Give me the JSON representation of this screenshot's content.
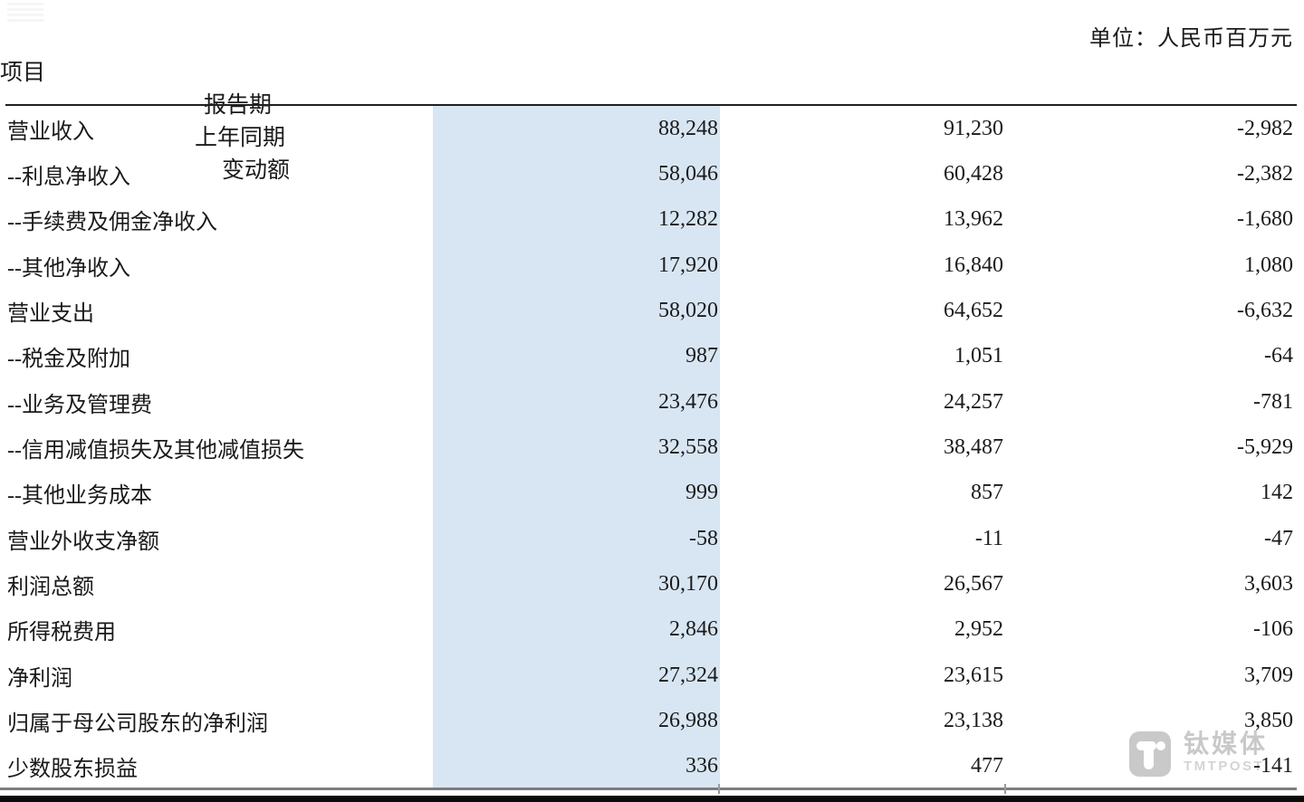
{
  "unit_label": "单位：人民币百万元",
  "table": {
    "columns": [
      "项目",
      "报告期",
      "上年同期",
      "变动额"
    ],
    "rows": [
      {
        "item": "营业收入",
        "current": "88,248",
        "prior": "91,230",
        "change": "-2,982"
      },
      {
        "item": "--利息净收入",
        "current": "58,046",
        "prior": "60,428",
        "change": "-2,382"
      },
      {
        "item": "--手续费及佣金净收入",
        "current": "12,282",
        "prior": "13,962",
        "change": "-1,680"
      },
      {
        "item": "--其他净收入",
        "current": "17,920",
        "prior": "16,840",
        "change": "1,080"
      },
      {
        "item": "营业支出",
        "current": "58,020",
        "prior": "64,652",
        "change": "-6,632"
      },
      {
        "item": "--税金及附加",
        "current": "987",
        "prior": "1,051",
        "change": "-64"
      },
      {
        "item": "--业务及管理费",
        "current": "23,476",
        "prior": "24,257",
        "change": "-781"
      },
      {
        "item": "--信用减值损失及其他减值损失",
        "current": "32,558",
        "prior": "38,487",
        "change": "-5,929"
      },
      {
        "item": "--其他业务成本",
        "current": "999",
        "prior": "857",
        "change": "142"
      },
      {
        "item": "营业外收支净额",
        "current": "-58",
        "prior": "-11",
        "change": "-47"
      },
      {
        "item": "利润总额",
        "current": "30,170",
        "prior": "26,567",
        "change": "3,603"
      },
      {
        "item": "所得税费用",
        "current": "2,846",
        "prior": "2,952",
        "change": "-106"
      },
      {
        "item": "净利润",
        "current": "27,324",
        "prior": "23,615",
        "change": "3,709"
      },
      {
        "item": "归属于母公司股东的净利润",
        "current": "26,988",
        "prior": "23,138",
        "change": "3,850"
      },
      {
        "item": "少数股东损益",
        "current": "336",
        "prior": "477",
        "change": "-141"
      }
    ]
  },
  "watermark": {
    "logo_icon": "tmtpost-t-icon",
    "brand": "钛媒体",
    "brand_sub": "TMTPOST"
  },
  "colors": {
    "highlight_band": "#d8e6f3",
    "header_rule": "#1f1f1f",
    "bottom_rule_gray": "#7d7d7d",
    "bottom_bar_black": "#0a0a0a",
    "watermark_gray": "#c9c9c9",
    "text_ink": "#1a1a1a"
  }
}
